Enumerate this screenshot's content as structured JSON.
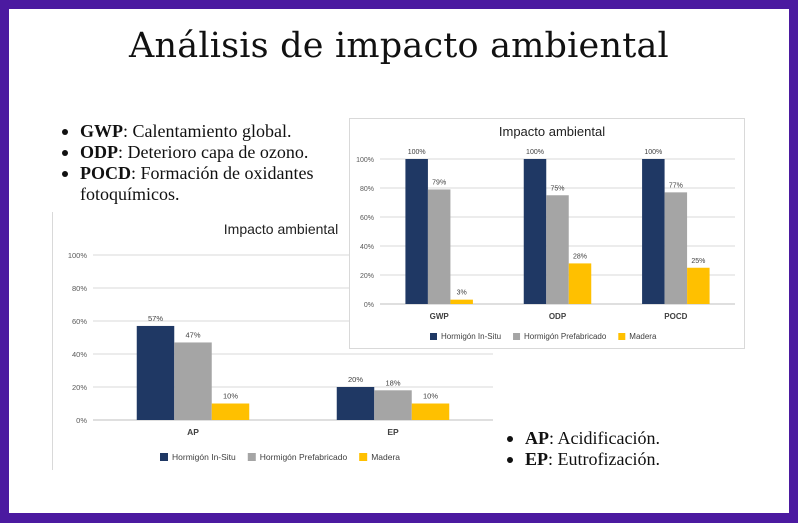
{
  "slide": {
    "title": "Análisis de impacto ambiental",
    "border_color": "#4b1aa0"
  },
  "bullets_top": [
    {
      "term": "GWP",
      "desc": ": Calentamiento global."
    },
    {
      "term": "ODP",
      "desc": ": Deterioro capa de ozono."
    },
    {
      "term": "POCD",
      "desc": ": Formación de oxidantes fotoquímicos."
    }
  ],
  "bullets_bottom": [
    {
      "term": "AP",
      "desc": ": Acidificación."
    },
    {
      "term": "EP",
      "desc": ": Eutrofización."
    }
  ],
  "chart_data": [
    {
      "id": "chart-gwp-odp-pocd",
      "type": "bar",
      "title": "Impacto ambiental",
      "categories": [
        "GWP",
        "ODP",
        "POCD"
      ],
      "ylim": [
        0,
        100
      ],
      "yticks": [
        "0%",
        "20%",
        "40%",
        "60%",
        "80%",
        "100%"
      ],
      "grid": true,
      "legend": "bottom",
      "series": [
        {
          "name": "Hormigón In-Situ",
          "color": "#1f3864",
          "values": [
            100,
            100,
            100
          ],
          "labels": [
            "100%",
            "100%",
            "100%"
          ]
        },
        {
          "name": "Hormigón Prefabricado",
          "color": "#a5a5a5",
          "values": [
            79,
            75,
            77
          ],
          "labels": [
            "79%",
            "75%",
            "77%"
          ]
        },
        {
          "name": "Madera",
          "color": "#ffc000",
          "values": [
            3,
            28,
            25
          ],
          "labels": [
            "3%",
            "28%",
            "25%"
          ]
        }
      ]
    },
    {
      "id": "chart-ap-ep",
      "type": "bar",
      "title": "Impacto ambiental",
      "categories": [
        "AP",
        "EP"
      ],
      "ylim": [
        0,
        100
      ],
      "yticks": [
        "0%",
        "20%",
        "40%",
        "60%",
        "80%",
        "100%"
      ],
      "grid": true,
      "legend": "bottom",
      "series": [
        {
          "name": "Hormigón In-Situ",
          "color": "#1f3864",
          "values": [
            57,
            20
          ],
          "labels": [
            "57%",
            "20%"
          ]
        },
        {
          "name": "Hormigón Prefabricado",
          "color": "#a5a5a5",
          "values": [
            47,
            18
          ],
          "labels": [
            "47%",
            "18%"
          ]
        },
        {
          "name": "Madera",
          "color": "#ffc000",
          "values": [
            10,
            10
          ],
          "labels": [
            "10%",
            "10%"
          ]
        }
      ]
    }
  ]
}
